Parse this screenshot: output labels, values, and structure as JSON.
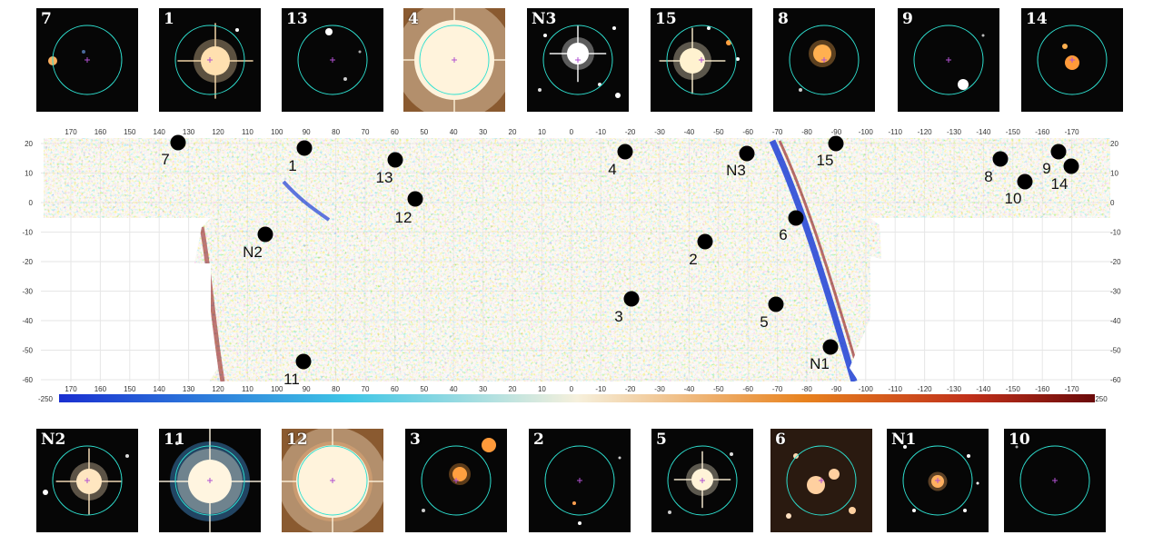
{
  "top_thumbnails": [
    {
      "label": "7"
    },
    {
      "label": "1"
    },
    {
      "label": "13"
    },
    {
      "label": "4"
    },
    {
      "label": "N3"
    },
    {
      "label": "15"
    },
    {
      "label": "8"
    },
    {
      "label": "9"
    },
    {
      "label": "14"
    }
  ],
  "bottom_thumbnails": [
    {
      "label": "N2"
    },
    {
      "label": "11"
    },
    {
      "label": "12"
    },
    {
      "label": "3"
    },
    {
      "label": "2"
    },
    {
      "label": "5"
    },
    {
      "label": "6"
    },
    {
      "label": "N1"
    },
    {
      "label": "10"
    }
  ],
  "map": {
    "x_ticks": [
      "170",
      "160",
      "150",
      "140",
      "130",
      "120",
      "110",
      "100",
      "90",
      "80",
      "70",
      "60",
      "50",
      "40",
      "30",
      "20",
      "10",
      "0",
      "-10",
      "-20",
      "-30",
      "-40",
      "-50",
      "-60",
      "-70",
      "-80",
      "-90",
      "-100",
      "-110",
      "-120",
      "-130",
      "-140",
      "-150",
      "-160",
      "-170"
    ],
    "y_ticks": [
      "20",
      "10",
      "0",
      "-10",
      "-20",
      "-30",
      "-40",
      "-50",
      "-60"
    ],
    "colorbar_min": "-250",
    "colorbar_max": "250",
    "colors": {
      "deep_blue": "#1e3fd6",
      "cyan": "#3fc6e6",
      "cream": "#f2e6c6",
      "orange": "#e8821e",
      "dark_red": "#8a0f0f",
      "ring": "#2ee0d0",
      "crosshair": "#b050d0"
    },
    "markers": [
      {
        "label": "7"
      },
      {
        "label": "1"
      },
      {
        "label": "13"
      },
      {
        "label": "12"
      },
      {
        "label": "N2"
      },
      {
        "label": "4"
      },
      {
        "label": "N3"
      },
      {
        "label": "15"
      },
      {
        "label": "6"
      },
      {
        "label": "2"
      },
      {
        "label": "3"
      },
      {
        "label": "5"
      },
      {
        "label": "N1"
      },
      {
        "label": "11"
      },
      {
        "label": "8"
      },
      {
        "label": "9"
      },
      {
        "label": "10"
      },
      {
        "label": "14"
      }
    ]
  }
}
